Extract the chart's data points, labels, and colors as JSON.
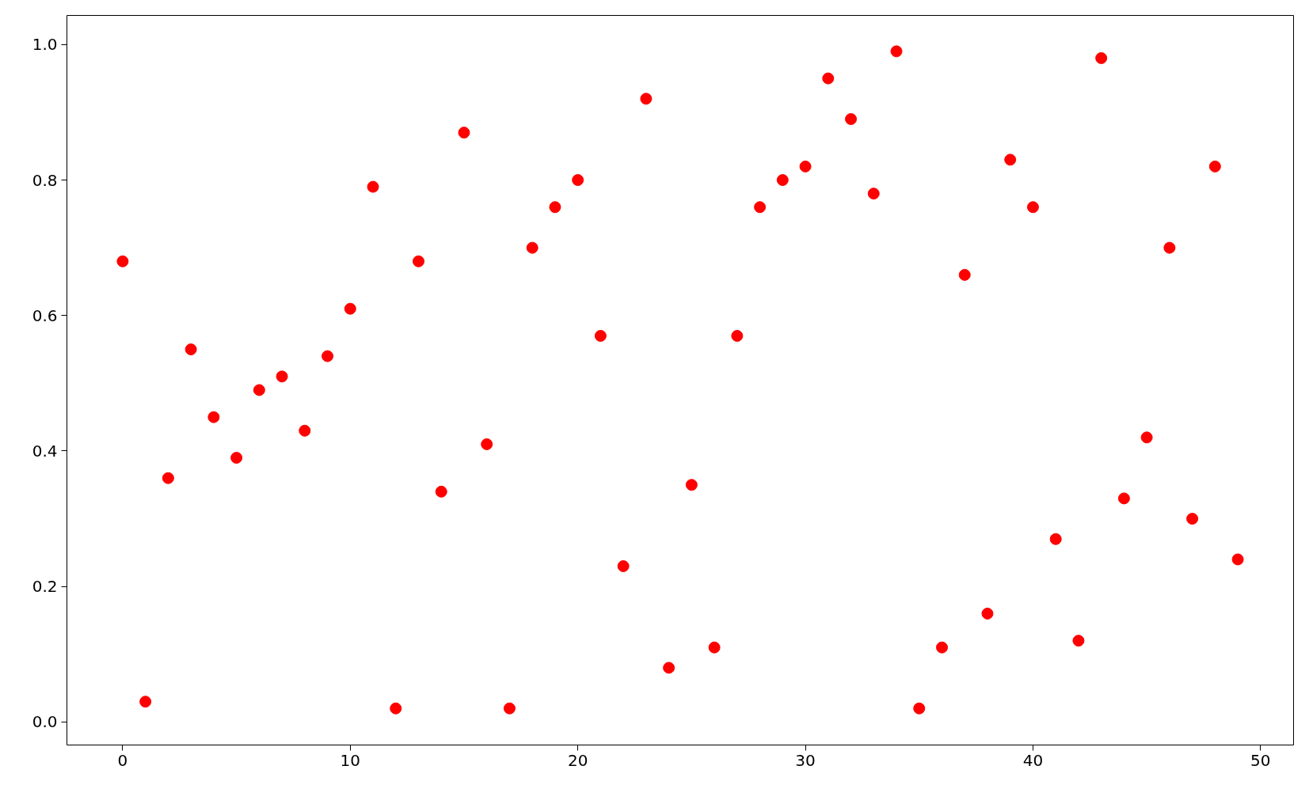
{
  "chart_data": {
    "type": "scatter",
    "x": [
      0,
      1,
      2,
      3,
      4,
      5,
      6,
      7,
      8,
      9,
      10,
      11,
      12,
      13,
      14,
      15,
      16,
      17,
      18,
      19,
      20,
      21,
      22,
      23,
      24,
      25,
      26,
      27,
      28,
      29,
      30,
      31,
      32,
      33,
      34,
      35,
      36,
      37,
      38,
      39,
      40,
      41,
      42,
      43,
      44,
      45,
      46,
      47,
      48,
      49
    ],
    "series": [
      {
        "color": "#ff0000",
        "values": [
          0.68,
          0.03,
          0.36,
          0.55,
          0.45,
          0.39,
          0.49,
          0.51,
          0.43,
          0.54,
          0.61,
          0.79,
          0.02,
          0.68,
          0.34,
          0.87,
          0.41,
          0.02,
          0.7,
          0.76,
          0.8,
          0.57,
          0.23,
          0.92,
          0.08,
          0.35,
          0.11,
          0.57,
          0.76,
          0.8,
          0.82,
          0.95,
          0.89,
          0.78,
          0.99,
          0.02,
          0.11,
          0.66,
          0.16,
          0.83,
          0.76,
          0.27,
          0.12,
          0.98,
          0.33,
          0.42,
          0.7,
          0.3,
          0.82,
          0.24
        ]
      }
    ],
    "xlim": [
      -2.45,
      51.45
    ],
    "ylim": [
      -0.034,
      1.043
    ],
    "xticks": [
      0,
      10,
      20,
      30,
      40,
      50
    ],
    "yticks": [
      {
        "value": 0,
        "label": "0.0"
      },
      {
        "value": 0.2,
        "label": "0.2"
      },
      {
        "value": 0.4,
        "label": "0.4"
      },
      {
        "value": 0.6,
        "label": "0.6"
      },
      {
        "value": 0.8,
        "label": "0.8"
      },
      {
        "value": 1,
        "label": "1.0"
      }
    ],
    "grid": false,
    "marker": "circle"
  }
}
